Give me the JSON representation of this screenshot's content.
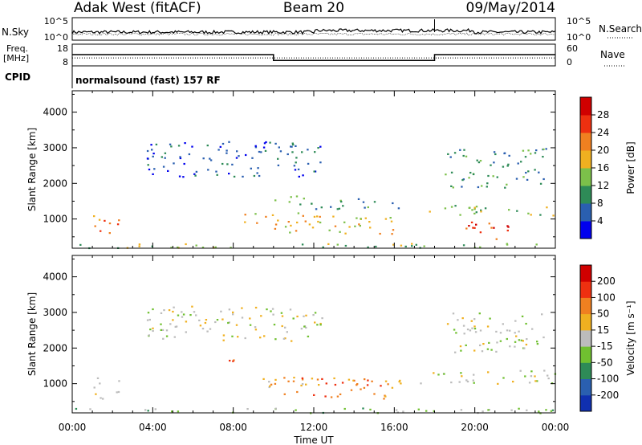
{
  "header": {
    "station": "Adak West (fitACF)",
    "beam": "Beam 20",
    "date": "09/May/2014"
  },
  "nsky": {
    "left_label": "N.Sky",
    "right_label": "N.Search",
    "left_ticks": [
      "10^5",
      "10^0"
    ],
    "right_ticks": [
      "10^5",
      "10^0"
    ]
  },
  "freq": {
    "left_label_1": "Freq.",
    "left_label_2": "[MHz]",
    "right_label": "Nave",
    "left_ticks": [
      "18",
      "8"
    ],
    "right_ticks": [
      "60",
      "0"
    ],
    "steps": [
      {
        "from": 0.0,
        "to": 10.0,
        "freq": 13.2
      },
      {
        "from": 10.0,
        "to": 18.0,
        "freq": 10.5
      },
      {
        "from": 18.0,
        "to": 24.0,
        "freq": 13.2
      }
    ],
    "nave": 22
  },
  "cpid": {
    "label": "CPID",
    "text": "normalsound (fast) 157 RF"
  },
  "chart_data": [
    {
      "type": "heatmap",
      "title": "",
      "xlabel": "Time UT",
      "ylabel": "Slant Range [km]",
      "x_ticks": [
        "00:00",
        "04:00",
        "08:00",
        "12:00",
        "16:00",
        "20:00",
        "00:00"
      ],
      "y_ticks": [
        "1000",
        "2000",
        "3000",
        "4000"
      ],
      "xlim": [
        0,
        24
      ],
      "ylim": [
        180,
        4600
      ],
      "colorbar": {
        "label": "Power [dB]",
        "ticks": [
          "4",
          "8",
          "12",
          "16",
          "20",
          "24",
          "28"
        ],
        "colors": [
          "#0000ee",
          "#2a5fb0",
          "#2e8b57",
          "#7cc04a",
          "#f0b020",
          "#f08020",
          "#ee3010",
          "#d00000"
        ]
      },
      "regions": [
        {
          "t0": 1.0,
          "t1": 2.3,
          "r0": 600,
          "r1": 1200,
          "level": 5
        },
        {
          "t0": 8.5,
          "t1": 12.0,
          "r0": 900,
          "r1": 1200,
          "level": 4
        },
        {
          "t0": 10.0,
          "t1": 16.3,
          "r0": 600,
          "r1": 1100,
          "level": 4
        },
        {
          "t0": 11.0,
          "t1": 16.5,
          "r0": 1300,
          "r1": 1600,
          "level": 2
        },
        {
          "t0": 3.7,
          "t1": 12.5,
          "r0": 2200,
          "r1": 3200,
          "level": 1
        },
        {
          "t0": 10.0,
          "t1": 11.5,
          "r0": 1400,
          "r1": 1700,
          "level": 3
        },
        {
          "t0": 17.0,
          "t1": 24.0,
          "r0": 1100,
          "r1": 1400,
          "level": 3
        },
        {
          "t0": 19.5,
          "t1": 21.8,
          "r0": 450,
          "r1": 1000,
          "level": 6
        },
        {
          "t0": 18.5,
          "t1": 23.5,
          "r0": 1900,
          "r1": 3000,
          "level": 2
        },
        {
          "t0": 0.0,
          "t1": 24.0,
          "r0": 190,
          "r1": 330,
          "level": 3
        }
      ]
    },
    {
      "type": "heatmap",
      "title": "",
      "xlabel": "Time UT",
      "ylabel": "Slant Range [km]",
      "x_ticks": [
        "00:00",
        "04:00",
        "08:00",
        "12:00",
        "16:00",
        "20:00",
        "00:00"
      ],
      "y_ticks": [
        "1000",
        "2000",
        "3000",
        "4000"
      ],
      "xlim": [
        0,
        24
      ],
      "ylim": [
        180,
        4600
      ],
      "colorbar": {
        "label": "Velocity [m s⁻¹]",
        "ticks": [
          "200",
          "100",
          "50",
          "15",
          "-15",
          "-50",
          "-100",
          "-200"
        ],
        "colors": [
          "#1030b0",
          "#2a5fb0",
          "#2e8b57",
          "#70c030",
          "#bcbcbc",
          "#f0b020",
          "#f08020",
          "#ee3010",
          "#d00000"
        ]
      },
      "regions": [
        {
          "t0": 1.0,
          "t1": 2.3,
          "r0": 600,
          "r1": 1200,
          "level": 4
        },
        {
          "t0": 8.5,
          "t1": 12.0,
          "r0": 900,
          "r1": 1200,
          "level": 5
        },
        {
          "t0": 10.0,
          "t1": 16.3,
          "r0": 600,
          "r1": 1200,
          "level": 6
        },
        {
          "t0": 7.0,
          "t1": 8.2,
          "r0": 1500,
          "r1": 1700,
          "level": 7
        },
        {
          "t0": 3.7,
          "t1": 12.5,
          "r0": 2200,
          "r1": 3200,
          "level": 4
        },
        {
          "t0": 17.0,
          "t1": 24.0,
          "r0": 1000,
          "r1": 1400,
          "level": 4
        },
        {
          "t0": 18.5,
          "t1": 23.5,
          "r0": 1900,
          "r1": 3000,
          "level": 4
        },
        {
          "t0": 0.0,
          "t1": 24.0,
          "r0": 190,
          "r1": 330,
          "level": 3
        }
      ]
    }
  ]
}
